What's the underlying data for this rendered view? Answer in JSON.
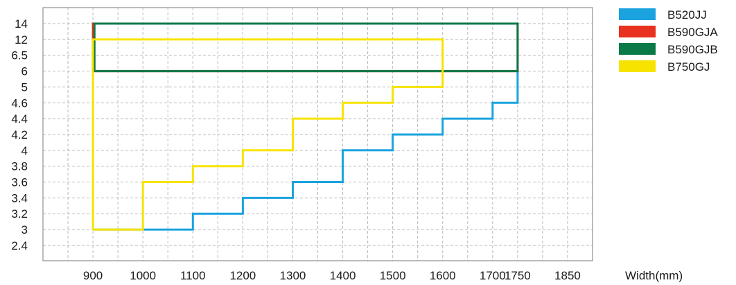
{
  "chart_data": {
    "type": "line",
    "title": "",
    "xlabel": "Width(mm)",
    "ylabel": "",
    "x_ticks": [
      900,
      1000,
      1100,
      1200,
      1300,
      1400,
      1500,
      1600,
      1700,
      1750,
      1850
    ],
    "xlim": [
      800,
      1900
    ],
    "y_ticks": [
      "14",
      "12",
      "6.5",
      "6",
      "5",
      "4.6",
      "4.4",
      "4.2",
      "4",
      "3.8",
      "3.6",
      "3.4",
      "3.2",
      "3",
      "2.4"
    ],
    "y_scale": "categorical (evenly spaced labels, top to bottom)",
    "grid": true,
    "legend_position": "right",
    "series": [
      {
        "name": "B520JJ",
        "color": "#1aa3df",
        "points": [
          [
            900,
            "3"
          ],
          [
            1100,
            "3"
          ],
          [
            1100,
            "3.2"
          ],
          [
            1200,
            "3.2"
          ],
          [
            1200,
            "3.4"
          ],
          [
            1300,
            "3.4"
          ],
          [
            1300,
            "3.6"
          ],
          [
            1400,
            "3.6"
          ],
          [
            1400,
            "4"
          ],
          [
            1500,
            "4"
          ],
          [
            1500,
            "4.2"
          ],
          [
            1600,
            "4.2"
          ],
          [
            1600,
            "4.4"
          ],
          [
            1700,
            "4.4"
          ],
          [
            1700,
            "4.6"
          ],
          [
            1750,
            "4.6"
          ],
          [
            1750,
            "6"
          ]
        ]
      },
      {
        "name": "B590GJA",
        "color": "#e8311f",
        "points": [
          [
            900,
            "6"
          ],
          [
            900,
            "14"
          ],
          [
            1750,
            "14"
          ],
          [
            1750,
            "6"
          ],
          [
            900,
            "6"
          ]
        ]
      },
      {
        "name": "B590GJB",
        "color": "#0a7a48",
        "points": [
          [
            903,
            "6"
          ],
          [
            903,
            "14"
          ],
          [
            1750,
            "14"
          ],
          [
            1750,
            "6"
          ],
          [
            903,
            "6"
          ]
        ]
      },
      {
        "name": "B750GJ",
        "color": "#f7e300",
        "points": [
          [
            900,
            "3"
          ],
          [
            1000,
            "3"
          ],
          [
            1000,
            "3.6"
          ],
          [
            1100,
            "3.6"
          ],
          [
            1100,
            "3.8"
          ],
          [
            1200,
            "3.8"
          ],
          [
            1200,
            "4"
          ],
          [
            1300,
            "4"
          ],
          [
            1300,
            "4.4"
          ],
          [
            1400,
            "4.4"
          ],
          [
            1400,
            "4.6"
          ],
          [
            1500,
            "4.6"
          ],
          [
            1500,
            "5"
          ],
          [
            1600,
            "5"
          ],
          [
            1600,
            "12"
          ],
          [
            900,
            "12"
          ],
          [
            900,
            "3"
          ]
        ]
      }
    ]
  }
}
